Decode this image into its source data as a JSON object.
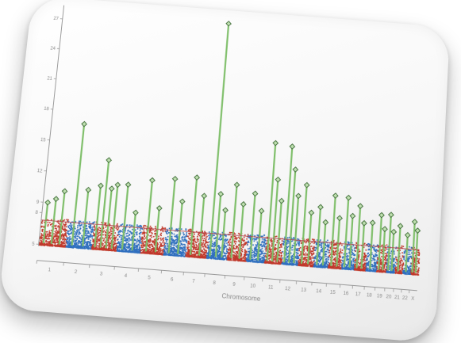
{
  "chart_data": {
    "type": "scatter",
    "subtype": "manhattan",
    "xlabel": "Chromosome",
    "ylabel": "",
    "ylim": [
      5,
      28
    ],
    "yticks": [
      5,
      8,
      9,
      12,
      15,
      18,
      21,
      24,
      27
    ],
    "ytick_labels": [
      "5",
      "8",
      "9",
      "12",
      "15",
      "18",
      "21",
      "24",
      "27"
    ],
    "threshold": 7.3,
    "chromosomes": [
      "1",
      "2",
      "3",
      "4",
      "5",
      "6",
      "7",
      "8",
      "9",
      "10",
      "11",
      "12",
      "13",
      "14",
      "15",
      "16",
      "17",
      "18",
      "19",
      "20",
      "21",
      "22",
      "X"
    ],
    "peaks": [
      {
        "chr": "1",
        "y": 9.0
      },
      {
        "chr": "1",
        "y": 9.4
      },
      {
        "chr": "1",
        "y": 10.2
      },
      {
        "chr": "2",
        "y": 16.8
      },
      {
        "chr": "2",
        "y": 10.5
      },
      {
        "chr": "3",
        "y": 11.0
      },
      {
        "chr": "3",
        "y": 13.5
      },
      {
        "chr": "3",
        "y": 10.8
      },
      {
        "chr": "3",
        "y": 11.2
      },
      {
        "chr": "4",
        "y": 11.3
      },
      {
        "chr": "4",
        "y": 8.7
      },
      {
        "chr": "5",
        "y": 11.9
      },
      {
        "chr": "5",
        "y": 9.3
      },
      {
        "chr": "6",
        "y": 12.2
      },
      {
        "chr": "6",
        "y": 10.1
      },
      {
        "chr": "7",
        "y": 12.5
      },
      {
        "chr": "7",
        "y": 10.8
      },
      {
        "chr": "8",
        "y": 27.8
      },
      {
        "chr": "8",
        "y": 11.1
      },
      {
        "chr": "8",
        "y": 9.6
      },
      {
        "chr": "9",
        "y": 12.1
      },
      {
        "chr": "9",
        "y": 10.3
      },
      {
        "chr": "10",
        "y": 11.4
      },
      {
        "chr": "10",
        "y": 9.8
      },
      {
        "chr": "11",
        "y": 16.4
      },
      {
        "chr": "11",
        "y": 12.9
      },
      {
        "chr": "11",
        "y": 10.9
      },
      {
        "chr": "12",
        "y": 16.2
      },
      {
        "chr": "12",
        "y": 14.0
      },
      {
        "chr": "12",
        "y": 11.5
      },
      {
        "chr": "13",
        "y": 12.6
      },
      {
        "chr": "13",
        "y": 10.0
      },
      {
        "chr": "14",
        "y": 10.6
      },
      {
        "chr": "14",
        "y": 9.2
      },
      {
        "chr": "15",
        "y": 11.8
      },
      {
        "chr": "15",
        "y": 9.7
      },
      {
        "chr": "16",
        "y": 11.7
      },
      {
        "chr": "16",
        "y": 10.0
      },
      {
        "chr": "17",
        "y": 11.0
      },
      {
        "chr": "17",
        "y": 9.4
      },
      {
        "chr": "18",
        "y": 9.5
      },
      {
        "chr": "19",
        "y": 10.3
      },
      {
        "chr": "19",
        "y": 9.0
      },
      {
        "chr": "20",
        "y": 10.4
      },
      {
        "chr": "20",
        "y": 8.8
      },
      {
        "chr": "21",
        "y": 9.4
      },
      {
        "chr": "22",
        "y": 8.6
      },
      {
        "chr": "X",
        "y": 9.9
      },
      {
        "chr": "X",
        "y": 9.1
      }
    ],
    "colors": {
      "odd_chromosome": "#c0392b",
      "even_chromosome": "#2f6fbf",
      "significant": "#7fbf6a",
      "marker_stroke": "#3d6b35",
      "marker_fill": "#bfe0b0",
      "threshold": "#b5474f",
      "axis": "#9a9a9a"
    },
    "grid": false,
    "legend": "none"
  }
}
